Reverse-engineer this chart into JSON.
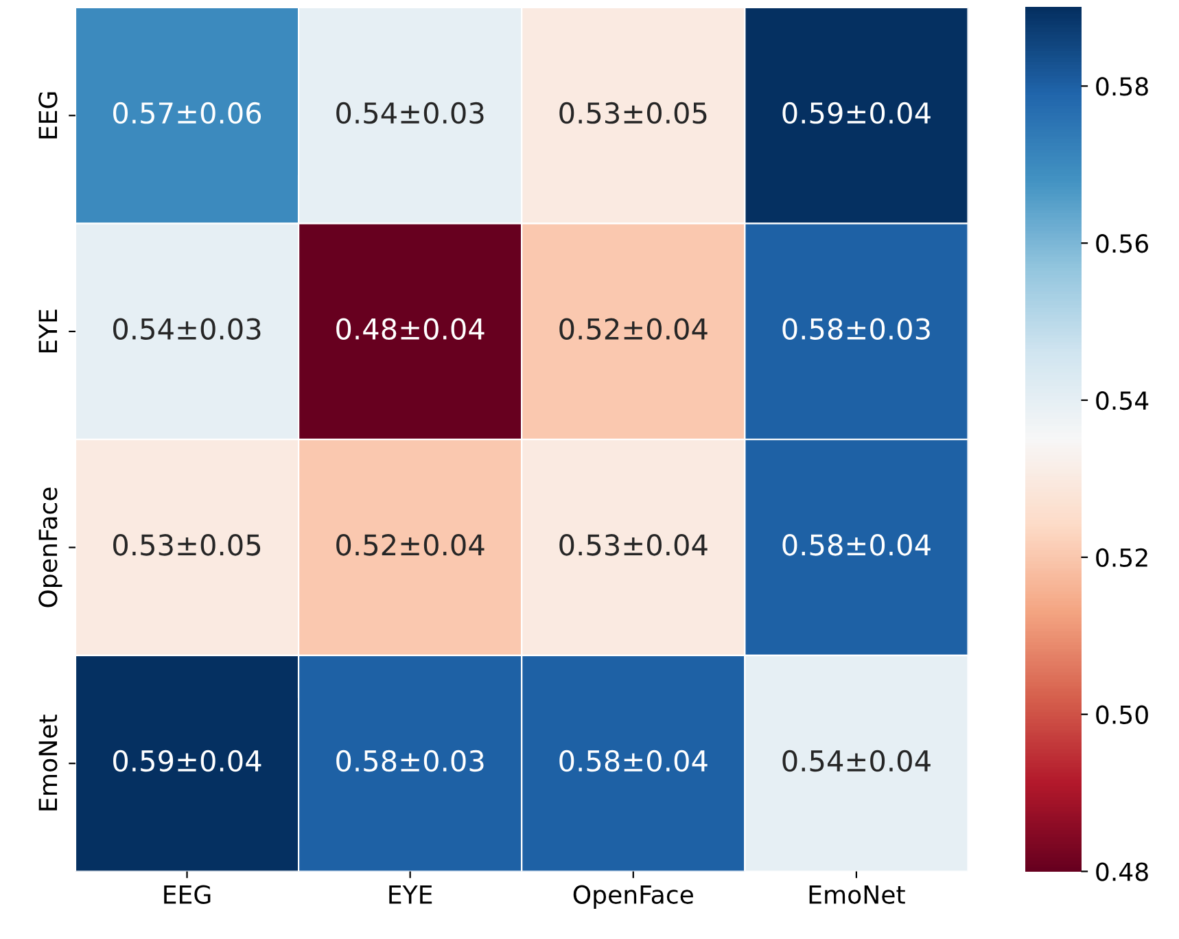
{
  "chart_data": {
    "type": "heatmap",
    "categories": [
      "EEG",
      "EYE",
      "OpenFace",
      "EmoNet"
    ],
    "y_categories": [
      "EEG",
      "EYE",
      "OpenFace",
      "EmoNet"
    ],
    "cells": [
      [
        0.57,
        0.54,
        0.53,
        0.59
      ],
      [
        0.54,
        0.48,
        0.52,
        0.58
      ],
      [
        0.53,
        0.52,
        0.53,
        0.58
      ],
      [
        0.59,
        0.58,
        0.58,
        0.54
      ]
    ],
    "cell_labels": [
      [
        "0.57±0.06",
        "0.54±0.03",
        "0.53±0.05",
        "0.59±0.04"
      ],
      [
        "0.54±0.03",
        "0.48±0.04",
        "0.52±0.04",
        "0.58±0.03"
      ],
      [
        "0.53±0.05",
        "0.52±0.04",
        "0.53±0.04",
        "0.58±0.04"
      ],
      [
        "0.59±0.04",
        "0.58±0.03",
        "0.58±0.04",
        "0.54±0.04"
      ]
    ],
    "clim": [
      0.48,
      0.59
    ],
    "cticks": [
      0.48,
      {
        "value": 0.5,
        "label": "0.50"
      },
      0.52,
      0.54,
      0.56,
      0.58
    ]
  }
}
